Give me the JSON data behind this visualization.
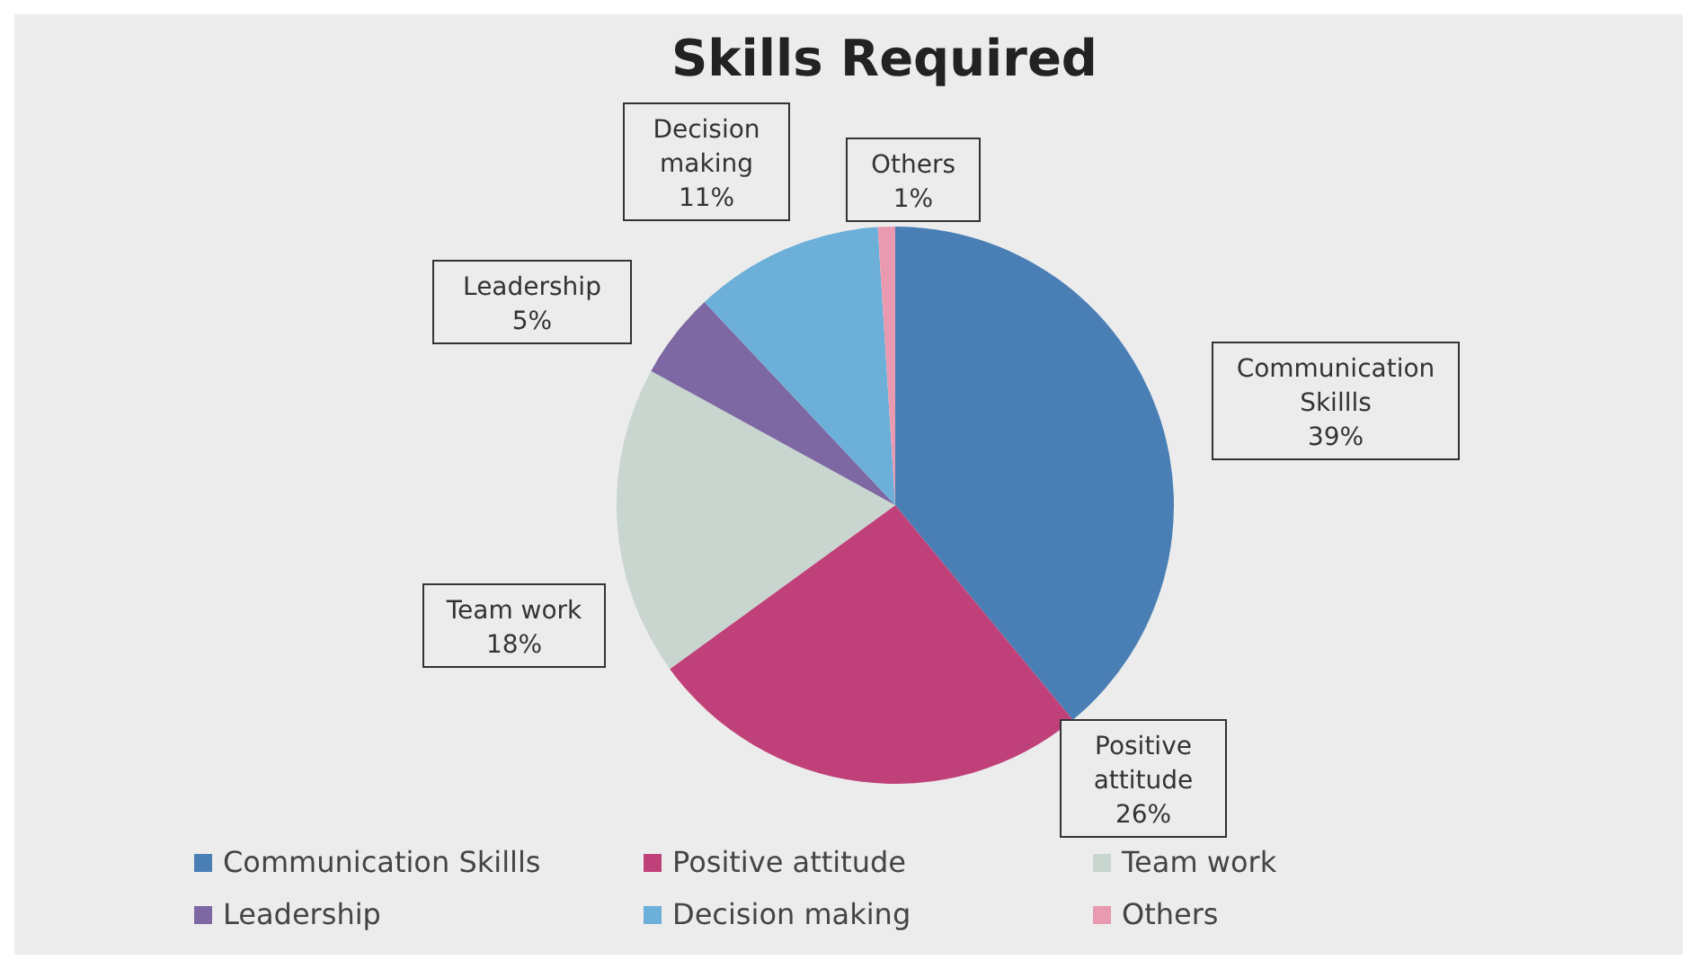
{
  "chart_data": {
    "type": "pie",
    "title": "Skills Required",
    "categories": [
      "Communication Skillls",
      "Positive attitude",
      "Team work",
      "Leadership",
      "Decision making",
      "Others"
    ],
    "values": [
      39,
      26,
      18,
      5,
      11,
      1
    ],
    "value_labels": [
      "39%",
      "26%",
      "18%",
      "5%",
      "11%",
      "1%"
    ],
    "colors": [
      "#4a7fb5",
      "#c0407a",
      "#c9d6cf",
      "#7d68a3",
      "#6cafd8",
      "#e99ab0"
    ],
    "legend": "bottom"
  }
}
